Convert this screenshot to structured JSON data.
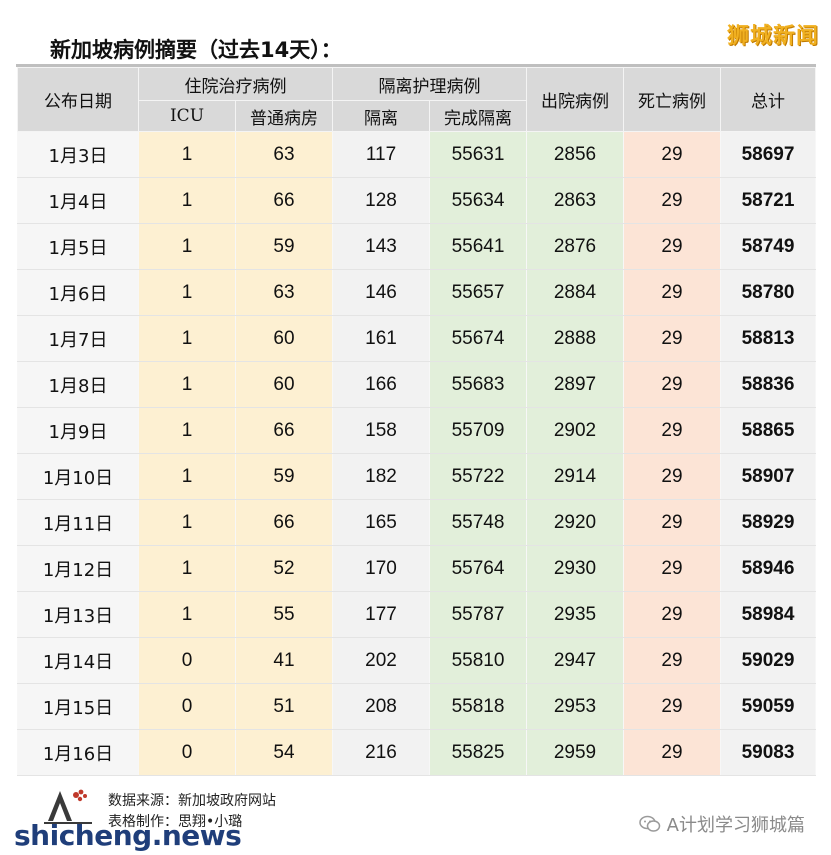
{
  "watermark_top": "狮城新闻",
  "title": "新加坡病例摘要（过去14天）：",
  "table": {
    "header": {
      "date": "公布日期",
      "hospital_group": "住院治疗病例",
      "isolation_group": "隔离护理病例",
      "discharged": "出院病例",
      "deaths": "死亡病例",
      "total": "总计",
      "icu": "ICU",
      "general_ward": "普通病房",
      "isolation": "隔离",
      "completed_isolation": "完成隔离"
    },
    "rows": [
      {
        "date": "1月3日",
        "icu": "1",
        "ward": "63",
        "iso": "117",
        "done": "55631",
        "dis": "2856",
        "dead": "29",
        "total": "58697"
      },
      {
        "date": "1月4日",
        "icu": "1",
        "ward": "66",
        "iso": "128",
        "done": "55634",
        "dis": "2863",
        "dead": "29",
        "total": "58721"
      },
      {
        "date": "1月5日",
        "icu": "1",
        "ward": "59",
        "iso": "143",
        "done": "55641",
        "dis": "2876",
        "dead": "29",
        "total": "58749"
      },
      {
        "date": "1月6日",
        "icu": "1",
        "ward": "63",
        "iso": "146",
        "done": "55657",
        "dis": "2884",
        "dead": "29",
        "total": "58780"
      },
      {
        "date": "1月7日",
        "icu": "1",
        "ward": "60",
        "iso": "161",
        "done": "55674",
        "dis": "2888",
        "dead": "29",
        "total": "58813"
      },
      {
        "date": "1月8日",
        "icu": "1",
        "ward": "60",
        "iso": "166",
        "done": "55683",
        "dis": "2897",
        "dead": "29",
        "total": "58836"
      },
      {
        "date": "1月9日",
        "icu": "1",
        "ward": "66",
        "iso": "158",
        "done": "55709",
        "dis": "2902",
        "dead": "29",
        "total": "58865"
      },
      {
        "date": "1月10日",
        "icu": "1",
        "ward": "59",
        "iso": "182",
        "done": "55722",
        "dis": "2914",
        "dead": "29",
        "total": "58907"
      },
      {
        "date": "1月11日",
        "icu": "1",
        "ward": "66",
        "iso": "165",
        "done": "55748",
        "dis": "2920",
        "dead": "29",
        "total": "58929"
      },
      {
        "date": "1月12日",
        "icu": "1",
        "ward": "52",
        "iso": "170",
        "done": "55764",
        "dis": "2930",
        "dead": "29",
        "total": "58946"
      },
      {
        "date": "1月13日",
        "icu": "1",
        "ward": "55",
        "iso": "177",
        "done": "55787",
        "dis": "2935",
        "dead": "29",
        "total": "58984"
      },
      {
        "date": "1月14日",
        "icu": "0",
        "ward": "41",
        "iso": "202",
        "done": "55810",
        "dis": "2947",
        "dead": "29",
        "total": "59029"
      },
      {
        "date": "1月15日",
        "icu": "0",
        "ward": "51",
        "iso": "208",
        "done": "55818",
        "dis": "2953",
        "dead": "29",
        "total": "59059"
      },
      {
        "date": "1月16日",
        "icu": "0",
        "ward": "54",
        "iso": "216",
        "done": "55825",
        "dis": "2959",
        "dead": "29",
        "total": "59083"
      }
    ]
  },
  "footer": {
    "source": "数据来源：新加坡政府网站",
    "made_by": "表格制作：思翔•小璐",
    "site_watermark": "shicheng.news",
    "wechat_account": "A计划学习狮城篇"
  },
  "colors": {
    "header_bg": "#d9d9d9",
    "hospital_bg": "#fdf0d2",
    "isolation_done_bg": "#e2efda",
    "deaths_bg": "#fce4d6",
    "watermark": "#f0b020",
    "site_watermark": "#1f3e7a"
  }
}
